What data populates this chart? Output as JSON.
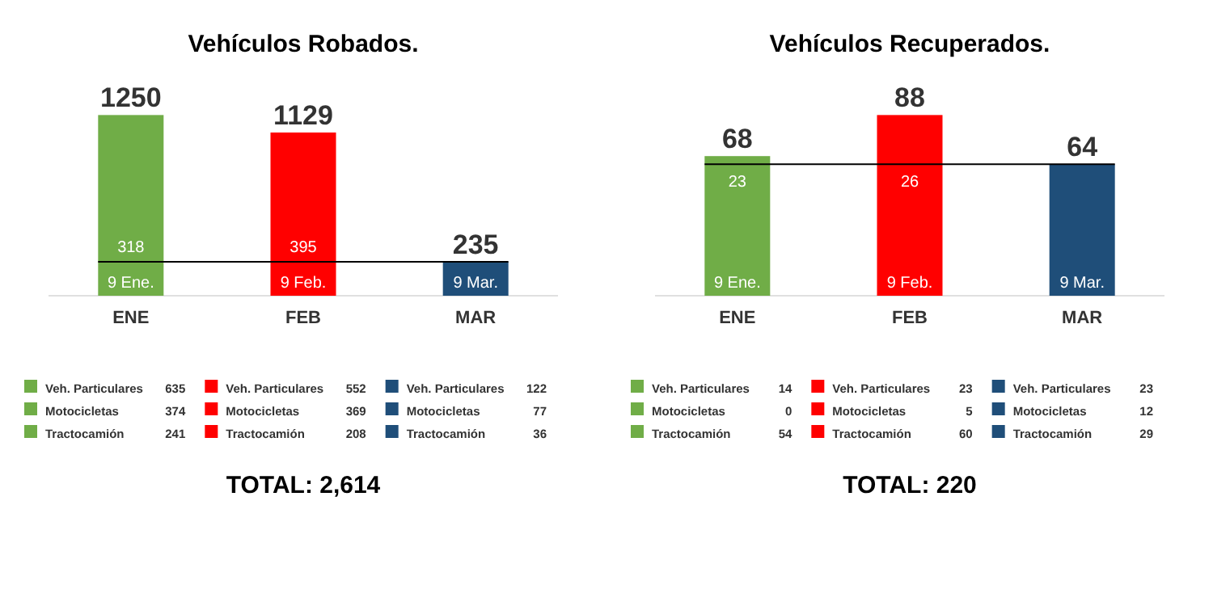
{
  "chart_data": [
    {
      "type": "bar",
      "title": "Vehículos Robados.",
      "categories": [
        "ENE",
        "FEB",
        "MAR"
      ],
      "values": [
        1250,
        1129,
        235
      ],
      "colors": [
        "#70ad47",
        "#ff0000",
        "#1f4e79"
      ],
      "tick_labels": "x",
      "data_labels": true,
      "ref_lines": [
        {
          "axis": "y",
          "value": 235,
          "color": "#000000"
        }
      ],
      "annotations": [
        "318",
        "395",
        "9 Ene.",
        "9 Feb.",
        "9 Mar.",
        "Veh. Particulares 635",
        "Motocicletas 374",
        "Tractocamión 241",
        "Veh. Particulares 552",
        "Motocicletas 369",
        "Tractocamión 208",
        "Veh. Particulares 122",
        "Motocicletas 77",
        "Tractocamión 36",
        "TOTAL: 2,614"
      ]
    },
    {
      "type": "bar",
      "title": "Vehículos Recuperados.",
      "categories": [
        "ENE",
        "FEB",
        "MAR"
      ],
      "values": [
        68,
        88,
        64
      ],
      "colors": [
        "#70ad47",
        "#ff0000",
        "#1f4e79"
      ],
      "tick_labels": "x",
      "data_labels": true,
      "ref_lines": [
        {
          "axis": "y",
          "value": 64,
          "color": "#000000"
        }
      ],
      "annotations": [
        "23",
        "26",
        "9 Ene.",
        "9 Feb.",
        "9 Mar.",
        "Veh. Particulares 14",
        "Motocicletas 0",
        "Tractocamión 54",
        "Veh. Particulares 23",
        "Motocicletas 5",
        "Tractocamión 60",
        "Veh. Particulares 23",
        "Motocicletas 12",
        "Tractocamión 29",
        "TOTAL: 220"
      ]
    }
  ]
}
